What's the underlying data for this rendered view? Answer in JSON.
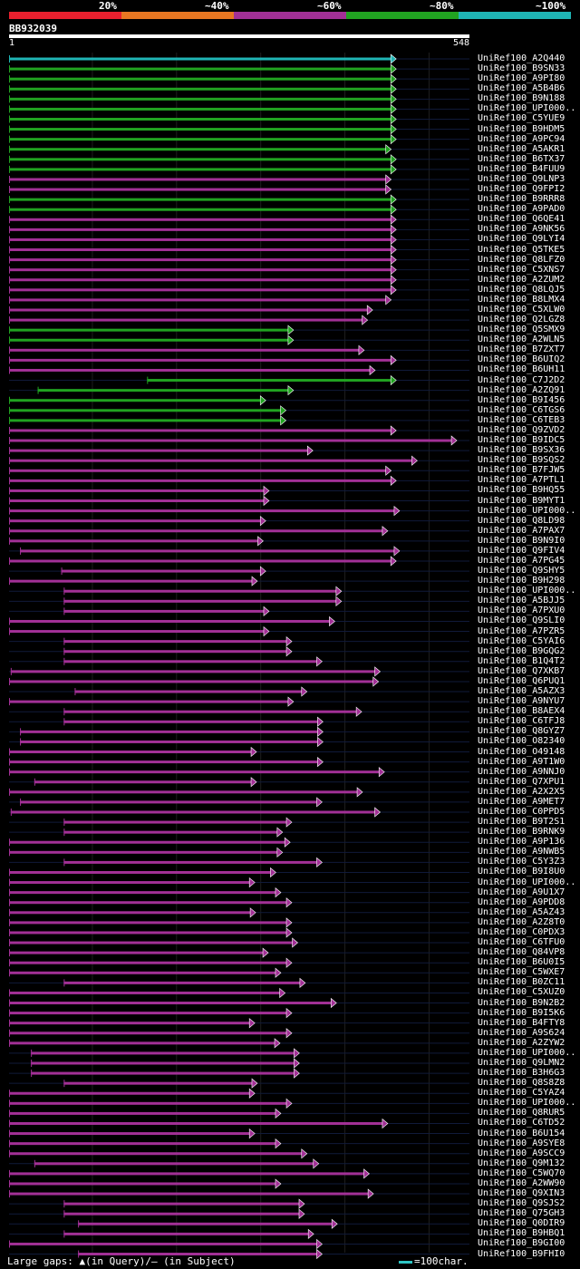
{
  "legend": {
    "labels": [
      "20%",
      "~40%",
      "~60%",
      "~80%",
      "~100%"
    ],
    "colors": [
      "#e8202e",
      "#e87722",
      "#a23096",
      "#21a321",
      "#1fb5b5"
    ]
  },
  "query": {
    "name": "BB932039",
    "start": "1",
    "end": "548",
    "length": 548
  },
  "footer": {
    "gaps_text": "Large gaps: ▲(in Query)/– (in Subject)",
    "scale_text": "=100char."
  },
  "chart_data": {
    "type": "alignment",
    "title": "BB932039",
    "query_length": 548,
    "identity_bins": [
      "20%",
      "~40%",
      "~60%",
      "~80%",
      "~100%"
    ],
    "hits": [
      {
        "name": "UniRef100_A2Q440",
        "start": 1,
        "end": 461,
        "id": "~100%"
      },
      {
        "name": "UniRef100_B9SN33",
        "start": 1,
        "end": 461,
        "id": "~80%"
      },
      {
        "name": "UniRef100_A9PI80",
        "start": 1,
        "end": 461,
        "id": "~80%"
      },
      {
        "name": "UniRef100_A5B4B6",
        "start": 1,
        "end": 461,
        "id": "~80%"
      },
      {
        "name": "UniRef100_B9N188",
        "start": 1,
        "end": 461,
        "id": "~80%"
      },
      {
        "name": "UniRef100_UPI000..",
        "start": 1,
        "end": 461,
        "id": "~80%"
      },
      {
        "name": "UniRef100_C5YUE9",
        "start": 1,
        "end": 461,
        "id": "~80%"
      },
      {
        "name": "UniRef100_B9HDM5",
        "start": 1,
        "end": 461,
        "id": "~80%"
      },
      {
        "name": "UniRef100_A9PC94",
        "start": 1,
        "end": 461,
        "id": "~80%"
      },
      {
        "name": "UniRef100_A5AKR1",
        "start": 1,
        "end": 455,
        "id": "~80%"
      },
      {
        "name": "UniRef100_B6TX37",
        "start": 1,
        "end": 461,
        "id": "~80%"
      },
      {
        "name": "UniRef100_B4FUU9",
        "start": 1,
        "end": 461,
        "id": "~80%"
      },
      {
        "name": "UniRef100_Q9LNP3",
        "start": 1,
        "end": 455,
        "id": "~60%"
      },
      {
        "name": "UniRef100_Q9FPI2",
        "start": 1,
        "end": 455,
        "id": "~60%"
      },
      {
        "name": "UniRef100_B9RRR8",
        "start": 1,
        "end": 461,
        "id": "~80%"
      },
      {
        "name": "UniRef100_A9PAD0",
        "start": 1,
        "end": 461,
        "id": "~80%"
      },
      {
        "name": "UniRef100_Q6QE41",
        "start": 1,
        "end": 461,
        "id": "~60%"
      },
      {
        "name": "UniRef100_A9NK56",
        "start": 1,
        "end": 461,
        "id": "~60%"
      },
      {
        "name": "UniRef100_Q9LYI4",
        "start": 1,
        "end": 461,
        "id": "~60%"
      },
      {
        "name": "UniRef100_Q5TKE5",
        "start": 1,
        "end": 461,
        "id": "~60%"
      },
      {
        "name": "UniRef100_Q8LFZ0",
        "start": 1,
        "end": 461,
        "id": "~60%"
      },
      {
        "name": "UniRef100_C5XNS7",
        "start": 1,
        "end": 461,
        "id": "~60%"
      },
      {
        "name": "UniRef100_A2ZUM2",
        "start": 1,
        "end": 461,
        "id": "~60%"
      },
      {
        "name": "UniRef100_Q8LQJ5",
        "start": 1,
        "end": 461,
        "id": "~60%"
      },
      {
        "name": "UniRef100_B8LMX4",
        "start": 1,
        "end": 455,
        "id": "~60%"
      },
      {
        "name": "UniRef100_C5XLW0",
        "start": 1,
        "end": 433,
        "id": "~60%"
      },
      {
        "name": "UniRef100_Q2LGZ8",
        "start": 1,
        "end": 427,
        "id": "~60%"
      },
      {
        "name": "UniRef100_Q5SMX9",
        "start": 1,
        "end": 339,
        "id": "~80%"
      },
      {
        "name": "UniRef100_A2WLN5",
        "start": 1,
        "end": 339,
        "id": "~80%"
      },
      {
        "name": "UniRef100_B7ZXT7",
        "start": 1,
        "end": 423,
        "id": "~60%"
      },
      {
        "name": "UniRef100_B6UIQ2",
        "start": 1,
        "end": 461,
        "id": "~60%"
      },
      {
        "name": "UniRef100_B6UH11",
        "start": 1,
        "end": 436,
        "id": "~60%"
      },
      {
        "name": "UniRef100_C7J2D2",
        "start": 165,
        "end": 461,
        "id": "~80%"
      },
      {
        "name": "UniRef100_A2ZQ91",
        "start": 35,
        "end": 339,
        "id": "~80%"
      },
      {
        "name": "UniRef100_B9I456",
        "start": 1,
        "end": 306,
        "id": "~80%"
      },
      {
        "name": "UniRef100_C6TGS6",
        "start": 1,
        "end": 330,
        "id": "~80%"
      },
      {
        "name": "UniRef100_C6TEB3",
        "start": 1,
        "end": 330,
        "id": "~80%"
      },
      {
        "name": "UniRef100_Q9ZVD2",
        "start": 1,
        "end": 461,
        "id": "~60%"
      },
      {
        "name": "UniRef100_B9IDC5",
        "start": 1,
        "end": 533,
        "id": "~60%"
      },
      {
        "name": "UniRef100_B9SX36",
        "start": 1,
        "end": 362,
        "id": "~60%"
      },
      {
        "name": "UniRef100_B9SQS2",
        "start": 1,
        "end": 486,
        "id": "~60%"
      },
      {
        "name": "UniRef100_B7FJW5",
        "start": 1,
        "end": 455,
        "id": "~60%"
      },
      {
        "name": "UniRef100_A7PTL1",
        "start": 1,
        "end": 461,
        "id": "~60%"
      },
      {
        "name": "UniRef100_B9HQ55",
        "start": 1,
        "end": 310,
        "id": "~60%"
      },
      {
        "name": "UniRef100_B9MYT1",
        "start": 1,
        "end": 310,
        "id": "~60%"
      },
      {
        "name": "UniRef100_UPI000..",
        "start": 1,
        "end": 465,
        "id": "~60%"
      },
      {
        "name": "UniRef100_Q8LD98",
        "start": 1,
        "end": 306,
        "id": "~60%"
      },
      {
        "name": "UniRef100_A7PAX7",
        "start": 1,
        "end": 451,
        "id": "~60%"
      },
      {
        "name": "UniRef100_B9N9I0",
        "start": 1,
        "end": 303,
        "id": "~60%"
      },
      {
        "name": "UniRef100_Q9FIV4",
        "start": 14,
        "end": 465,
        "id": "~60%"
      },
      {
        "name": "UniRef100_A7PG45",
        "start": 1,
        "end": 461,
        "id": "~60%"
      },
      {
        "name": "UniRef100_Q9SHY5",
        "start": 63,
        "end": 306,
        "id": "~60%"
      },
      {
        "name": "UniRef100_B9H298",
        "start": 1,
        "end": 296,
        "id": "~60%"
      },
      {
        "name": "UniRef100_UPI000..",
        "start": 66,
        "end": 396,
        "id": "~60%"
      },
      {
        "name": "UniRef100_A5BJJ5",
        "start": 66,
        "end": 396,
        "id": "~60%"
      },
      {
        "name": "UniRef100_A7PXU0",
        "start": 66,
        "end": 310,
        "id": "~60%"
      },
      {
        "name": "UniRef100_Q9SLI0",
        "start": 1,
        "end": 388,
        "id": "~60%"
      },
      {
        "name": "UniRef100_A7PZR5",
        "start": 1,
        "end": 310,
        "id": "~60%"
      },
      {
        "name": "UniRef100_C5YAI6",
        "start": 66,
        "end": 337,
        "id": "~60%"
      },
      {
        "name": "UniRef100_B9GQG2",
        "start": 66,
        "end": 337,
        "id": "~60%"
      },
      {
        "name": "UniRef100_B1Q4T2",
        "start": 66,
        "end": 373,
        "id": "~60%"
      },
      {
        "name": "UniRef100_Q7XKB7",
        "start": 3,
        "end": 442,
        "id": "~60%"
      },
      {
        "name": "UniRef100_Q6PUQ1",
        "start": 1,
        "end": 440,
        "id": "~60%"
      },
      {
        "name": "UniRef100_A5AZX3",
        "start": 79,
        "end": 355,
        "id": "~60%"
      },
      {
        "name": "UniRef100_A9NYU7",
        "start": 1,
        "end": 339,
        "id": "~60%"
      },
      {
        "name": "UniRef100_B8AEX4",
        "start": 66,
        "end": 420,
        "id": "~60%"
      },
      {
        "name": "UniRef100_C6TFJ8",
        "start": 66,
        "end": 374,
        "id": "~60%"
      },
      {
        "name": "UniRef100_Q8GYZ7",
        "start": 14,
        "end": 374,
        "id": "~60%"
      },
      {
        "name": "UniRef100_O82340",
        "start": 14,
        "end": 374,
        "id": "~60%"
      },
      {
        "name": "UniRef100_O49148",
        "start": 1,
        "end": 295,
        "id": "~60%"
      },
      {
        "name": "UniRef100_A9T1W0",
        "start": 1,
        "end": 374,
        "id": "~60%"
      },
      {
        "name": "UniRef100_A9NNJ0",
        "start": 1,
        "end": 447,
        "id": "~60%"
      },
      {
        "name": "UniRef100_Q7XPU1",
        "start": 31,
        "end": 295,
        "id": "~60%"
      },
      {
        "name": "UniRef100_A2X2X5",
        "start": 1,
        "end": 421,
        "id": "~60%"
      },
      {
        "name": "UniRef100_A9MET7",
        "start": 14,
        "end": 373,
        "id": "~60%"
      },
      {
        "name": "UniRef100_C0PPD5",
        "start": 3,
        "end": 442,
        "id": "~60%"
      },
      {
        "name": "UniRef100_B9T2S1",
        "start": 66,
        "end": 337,
        "id": "~60%"
      },
      {
        "name": "UniRef100_B9RNK9",
        "start": 66,
        "end": 326,
        "id": "~60%"
      },
      {
        "name": "UniRef100_A9P136",
        "start": 1,
        "end": 335,
        "id": "~60%"
      },
      {
        "name": "UniRef100_A9NWB5",
        "start": 1,
        "end": 326,
        "id": "~60%"
      },
      {
        "name": "UniRef100_C5Y3Z3",
        "start": 66,
        "end": 373,
        "id": "~60%"
      },
      {
        "name": "UniRef100_B9I8U0",
        "start": 1,
        "end": 318,
        "id": "~60%"
      },
      {
        "name": "UniRef100_UPI000..",
        "start": 1,
        "end": 293,
        "id": "~60%"
      },
      {
        "name": "UniRef100_A9U1X7",
        "start": 1,
        "end": 324,
        "id": "~60%"
      },
      {
        "name": "UniRef100_A9PDD8",
        "start": 1,
        "end": 337,
        "id": "~60%"
      },
      {
        "name": "UniRef100_A5AZ43",
        "start": 1,
        "end": 294,
        "id": "~60%"
      },
      {
        "name": "UniRef100_A2Z8T0",
        "start": 1,
        "end": 337,
        "id": "~60%"
      },
      {
        "name": "UniRef100_C0PDX3",
        "start": 1,
        "end": 337,
        "id": "~60%"
      },
      {
        "name": "UniRef100_C6TFU0",
        "start": 1,
        "end": 344,
        "id": "~60%"
      },
      {
        "name": "UniRef100_Q84VP8",
        "start": 1,
        "end": 309,
        "id": "~60%"
      },
      {
        "name": "UniRef100_B6U0I5",
        "start": 1,
        "end": 337,
        "id": "~60%"
      },
      {
        "name": "UniRef100_C5WXE7",
        "start": 1,
        "end": 324,
        "id": "~60%"
      },
      {
        "name": "UniRef100_B0ZC11",
        "start": 66,
        "end": 353,
        "id": "~60%"
      },
      {
        "name": "UniRef100_C5XUZ0",
        "start": 1,
        "end": 329,
        "id": "~60%"
      },
      {
        "name": "UniRef100_B9N2B2",
        "start": 1,
        "end": 390,
        "id": "~60%"
      },
      {
        "name": "UniRef100_B9I5K6",
        "start": 1,
        "end": 337,
        "id": "~60%"
      },
      {
        "name": "UniRef100_B4FTY8",
        "start": 1,
        "end": 293,
        "id": "~60%"
      },
      {
        "name": "UniRef100_A9S624",
        "start": 1,
        "end": 337,
        "id": "~60%"
      },
      {
        "name": "UniRef100_A2ZYW2",
        "start": 1,
        "end": 323,
        "id": "~60%"
      },
      {
        "name": "UniRef100_UPI000..",
        "start": 27,
        "end": 346,
        "id": "~60%"
      },
      {
        "name": "UniRef100_Q9LMN2",
        "start": 27,
        "end": 346,
        "id": "~60%"
      },
      {
        "name": "UniRef100_B3H6G3",
        "start": 27,
        "end": 346,
        "id": "~60%"
      },
      {
        "name": "UniRef100_Q8S8Z8",
        "start": 66,
        "end": 296,
        "id": "~60%"
      },
      {
        "name": "UniRef100_C5YAZ4",
        "start": 1,
        "end": 293,
        "id": "~60%"
      },
      {
        "name": "UniRef100_UPI000..",
        "start": 1,
        "end": 337,
        "id": "~60%"
      },
      {
        "name": "UniRef100_Q8RUR5",
        "start": 1,
        "end": 324,
        "id": "~60%"
      },
      {
        "name": "UniRef100_C6TD52",
        "start": 1,
        "end": 451,
        "id": "~60%"
      },
      {
        "name": "UniRef100_B6U154",
        "start": 1,
        "end": 293,
        "id": "~60%"
      },
      {
        "name": "UniRef100_A9SYE8",
        "start": 1,
        "end": 324,
        "id": "~60%"
      },
      {
        "name": "UniRef100_A9SCC9",
        "start": 1,
        "end": 355,
        "id": "~60%"
      },
      {
        "name": "UniRef100_Q9M132",
        "start": 31,
        "end": 369,
        "id": "~60%"
      },
      {
        "name": "UniRef100_C5WQ70",
        "start": 1,
        "end": 429,
        "id": "~60%"
      },
      {
        "name": "UniRef100_A2WW90",
        "start": 1,
        "end": 324,
        "id": "~60%"
      },
      {
        "name": "UniRef100_Q9XIN3",
        "start": 1,
        "end": 434,
        "id": "~60%"
      },
      {
        "name": "UniRef100_Q9SJS2",
        "start": 66,
        "end": 352,
        "id": "~60%"
      },
      {
        "name": "UniRef100_Q75GH3",
        "start": 66,
        "end": 352,
        "id": "~60%"
      },
      {
        "name": "UniRef100_Q0DIR9",
        "start": 83,
        "end": 391,
        "id": "~60%"
      },
      {
        "name": "UniRef100_B9HBQ1",
        "start": 66,
        "end": 363,
        "id": "~60%"
      },
      {
        "name": "UniRef100_B9GI00",
        "start": 1,
        "end": 373,
        "id": "~60%"
      },
      {
        "name": "UniRef100_B9FHI0",
        "start": 83,
        "end": 373,
        "id": "~60%"
      }
    ]
  }
}
